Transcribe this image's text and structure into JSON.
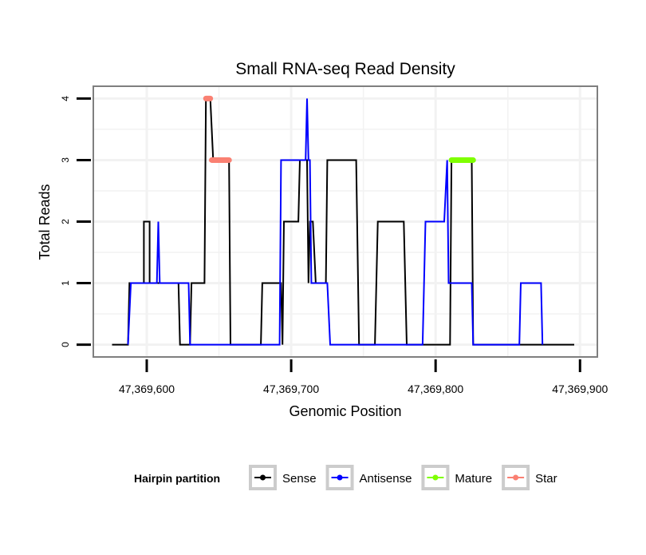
{
  "chart_data": {
    "type": "line",
    "title": "Small RNA-seq Read Density",
    "xlabel": "Genomic Position",
    "ylabel": "Total Reads",
    "xlim": [
      47369563,
      47369912
    ],
    "ylim": [
      -0.2,
      4.2
    ],
    "x_ticks": [
      47369600,
      47369700,
      47369800,
      47369900
    ],
    "x_tick_labels": [
      "47,369,600",
      "47,369,700",
      "47,369,800",
      "47,369,900"
    ],
    "y_ticks": [
      0,
      1,
      2,
      3,
      4
    ],
    "y_tick_labels": [
      "0",
      "1",
      "2",
      "3",
      "4"
    ],
    "grid": true,
    "legend": {
      "title": "Hairpin partition",
      "placement": "bottom",
      "entries": [
        {
          "name": "Sense",
          "color": "#000000"
        },
        {
          "name": "Antisense",
          "color": "#0000ff"
        },
        {
          "name": "Mature",
          "color": "#7fff00"
        },
        {
          "name": "Star",
          "color": "#fa8072"
        }
      ]
    },
    "series": [
      {
        "name": "Sense",
        "color": "#000000",
        "points": [
          [
            47369576,
            0
          ],
          [
            47369587,
            0
          ],
          [
            47369588,
            1
          ],
          [
            47369598,
            1
          ],
          [
            47369598,
            2
          ],
          [
            47369602,
            2
          ],
          [
            47369602,
            1
          ],
          [
            47369622,
            1
          ],
          [
            47369623,
            0
          ],
          [
            47369630,
            0
          ],
          [
            47369631,
            1
          ],
          [
            47369640,
            1
          ],
          [
            47369641,
            4
          ],
          [
            47369644,
            4
          ],
          [
            47369646,
            3
          ],
          [
            47369657,
            3
          ],
          [
            47369658,
            0
          ],
          [
            47369679,
            0
          ],
          [
            47369680,
            1
          ],
          [
            47369693,
            1
          ],
          [
            47369694,
            0
          ],
          [
            47369695,
            2
          ],
          [
            47369705,
            2
          ],
          [
            47369706,
            3
          ],
          [
            47369711,
            3
          ],
          [
            47369712,
            1
          ],
          [
            47369713,
            2
          ],
          [
            47369715,
            2
          ],
          [
            47369717,
            1
          ],
          [
            47369724,
            1
          ],
          [
            47369725,
            3
          ],
          [
            47369745,
            3
          ],
          [
            47369747,
            0
          ],
          [
            47369758,
            0
          ],
          [
            47369760,
            2
          ],
          [
            47369778,
            2
          ],
          [
            47369780,
            0
          ],
          [
            47369810,
            0
          ],
          [
            47369811,
            3
          ],
          [
            47369825,
            3
          ],
          [
            47369826,
            0
          ],
          [
            47369896,
            0
          ]
        ]
      },
      {
        "name": "Antisense",
        "color": "#0000ff",
        "points": [
          [
            47369587,
            0
          ],
          [
            47369589,
            1
          ],
          [
            47369607,
            1
          ],
          [
            47369608,
            2
          ],
          [
            47369609,
            1
          ],
          [
            47369629,
            1
          ],
          [
            47369630,
            0
          ],
          [
            47369692,
            0
          ],
          [
            47369693,
            3
          ],
          [
            47369710,
            3
          ],
          [
            47369711,
            4
          ],
          [
            47369712,
            3
          ],
          [
            47369713,
            3
          ],
          [
            47369714,
            1
          ],
          [
            47369725,
            1
          ],
          [
            47369727,
            0
          ],
          [
            47369791,
            0
          ],
          [
            47369793,
            2
          ],
          [
            47369806,
            2
          ],
          [
            47369808,
            3
          ],
          [
            47369809,
            1
          ],
          [
            47369825,
            1
          ],
          [
            47369826,
            0
          ],
          [
            47369858,
            0
          ],
          [
            47369859,
            1
          ],
          [
            47369873,
            1
          ],
          [
            47369874,
            0
          ]
        ]
      },
      {
        "name": "Mature",
        "color": "#7fff00",
        "segments": [
          {
            "x0": 47369811,
            "x1": 47369826,
            "y": 3
          }
        ]
      },
      {
        "name": "Star",
        "color": "#fa8072",
        "segments": [
          {
            "x0": 47369641,
            "x1": 47369644,
            "y": 4
          },
          {
            "x0": 47369645,
            "x1": 47369657,
            "y": 3
          }
        ]
      }
    ]
  }
}
